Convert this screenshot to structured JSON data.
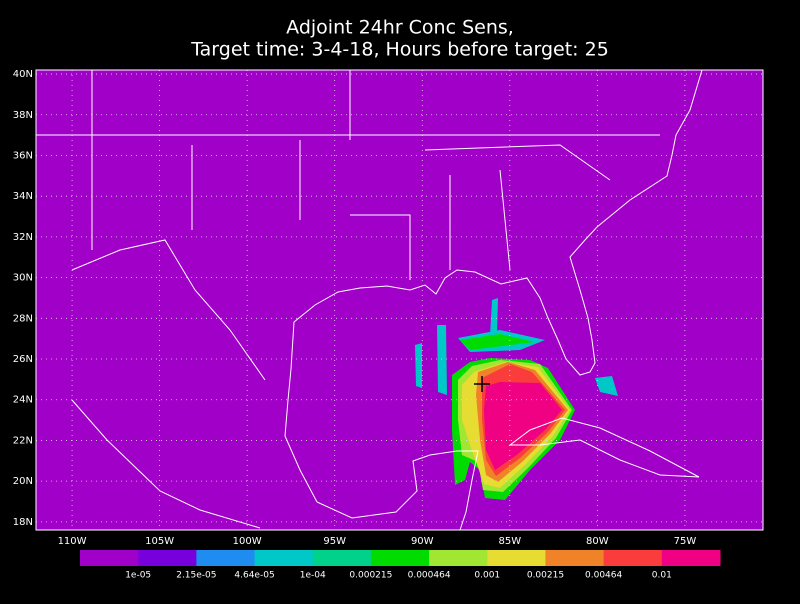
{
  "title": [
    "Adjoint 24hr Conc Sens,",
    "Target time: 3-4-18, Hours before target: 25"
  ],
  "lon_range": [
    -112.06,
    -70.54
  ],
  "lat_range": [
    17.6,
    40.2
  ],
  "lon_ticks": [
    {
      "value": -110,
      "label": "110W"
    },
    {
      "value": -105,
      "label": "105W"
    },
    {
      "value": -100,
      "label": "100W"
    },
    {
      "value": -95,
      "label": "95W"
    },
    {
      "value": -90,
      "label": "90W"
    },
    {
      "value": -85,
      "label": "85W"
    },
    {
      "value": -80,
      "label": "80W"
    },
    {
      "value": -75,
      "label": "75W"
    }
  ],
  "lat_ticks": [
    {
      "value": 18,
      "label": "18N"
    },
    {
      "value": 20,
      "label": "20N"
    },
    {
      "value": 22,
      "label": "22N"
    },
    {
      "value": 24,
      "label": "24N"
    },
    {
      "value": 26,
      "label": "26N"
    },
    {
      "value": 28,
      "label": "28N"
    },
    {
      "value": 30,
      "label": "30N"
    },
    {
      "value": 32,
      "label": "32N"
    },
    {
      "value": 34,
      "label": "34N"
    },
    {
      "value": 36,
      "label": "36N"
    },
    {
      "value": 38,
      "label": "38N"
    },
    {
      "value": 40,
      "label": "40N"
    }
  ],
  "grid": true,
  "colorbar": {
    "colors": [
      "#a000c8",
      "#7800dc",
      "#1e8cf0",
      "#00c8c8",
      "#00d28c",
      "#00dc00",
      "#a0e632",
      "#e6dc32",
      "#f08228",
      "#fa3c3c",
      "#f00082"
    ],
    "labels": [
      "1e-05",
      "2.15e-05",
      "4.64e-05",
      "1e-04",
      "0.000215",
      "0.000464",
      "0.001",
      "0.00215",
      "0.00464",
      "0.01"
    ]
  }
}
